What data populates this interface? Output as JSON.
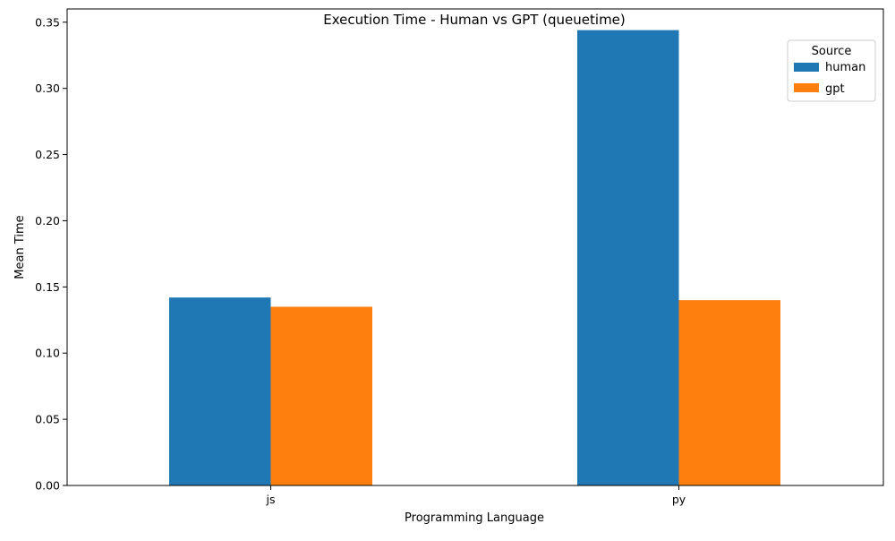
{
  "chart_data": {
    "type": "bar",
    "title": "Execution Time - Human vs GPT (queuetime)",
    "xlabel": "Programming Language",
    "ylabel": "Mean Time",
    "categories": [
      "js",
      "py"
    ],
    "series": [
      {
        "name": "human",
        "values": [
          0.142,
          0.344
        ],
        "color": "#1f77b4"
      },
      {
        "name": "gpt",
        "values": [
          0.135,
          0.14
        ],
        "color": "#ff7f0e"
      }
    ],
    "ylim": [
      0,
      0.36
    ],
    "yticks": [
      0.0,
      0.05,
      0.1,
      0.15,
      0.2,
      0.25,
      0.3,
      0.35
    ],
    "ytick_labels": [
      "0.00",
      "0.05",
      "0.10",
      "0.15",
      "0.20",
      "0.25",
      "0.30",
      "0.35"
    ],
    "grid": false,
    "legend": {
      "title": "Source",
      "placement": "top-right"
    }
  }
}
